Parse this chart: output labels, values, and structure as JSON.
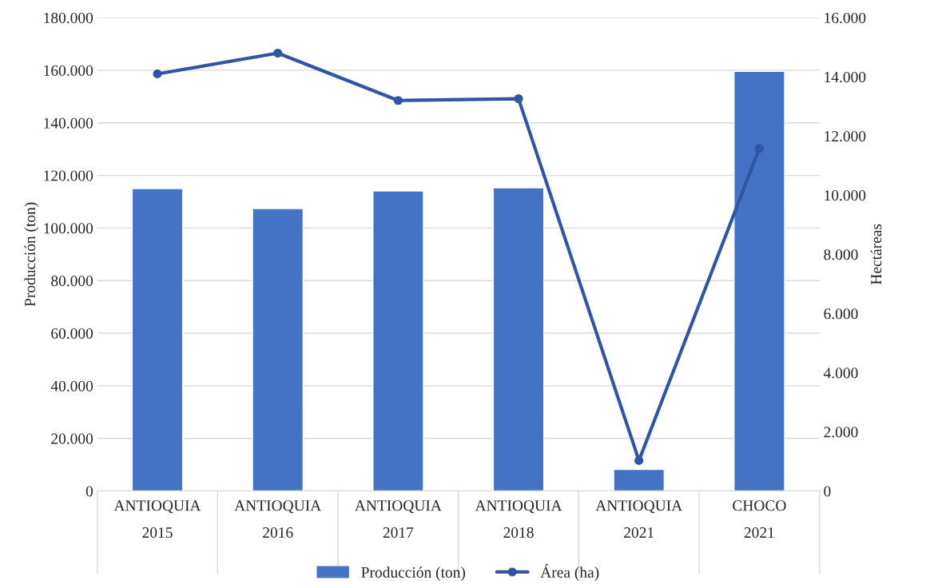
{
  "chart_data": {
    "type": "bar",
    "categories": [
      "ANTIOQUIA\n2015",
      "ANTIOQUIA\n2016",
      "ANTIOQUIA\n2017",
      "ANTIOQUIA\n2018",
      "ANTIOQUIA\n2021",
      "CHOCO\n2021"
    ],
    "series": [
      {
        "name": "Producción (ton)",
        "color": "#4472c4",
        "values": [
          115000,
          107400,
          114100,
          115300,
          8200,
          159600
        ]
      },
      {
        "name": "Área (ha)",
        "type": "line",
        "axis": "y2",
        "color": "#2f55a4",
        "marker": "circle",
        "values": [
          14100,
          14800,
          13200,
          13260,
          1030,
          11580
        ]
      }
    ],
    "ylabel": "Producción (ton)",
    "y2label": "Hectáreas",
    "ylim": [
      0,
      180000
    ],
    "yticks": [
      {
        "value": 0,
        "label": "0"
      },
      {
        "value": 20000,
        "label": "20.000"
      },
      {
        "value": 40000,
        "label": "40.000"
      },
      {
        "value": 60000,
        "label": "60.000"
      },
      {
        "value": 80000,
        "label": "80.000"
      },
      {
        "value": 100000,
        "label": "100.000"
      },
      {
        "value": 120000,
        "label": "120.000"
      },
      {
        "value": 140000,
        "label": "140.000"
      },
      {
        "value": 160000,
        "label": "160.000"
      },
      {
        "value": 180000,
        "label": "180.000"
      }
    ],
    "y2lim": [
      0,
      16000
    ],
    "y2ticks": [
      {
        "value": 0,
        "label": "0"
      },
      {
        "value": 2000,
        "label": "2.000"
      },
      {
        "value": 4000,
        "label": "4.000"
      },
      {
        "value": 6000,
        "label": "6.000"
      },
      {
        "value": 8000,
        "label": "8.000"
      },
      {
        "value": 10000,
        "label": "10.000"
      },
      {
        "value": 12000,
        "label": "12.000"
      },
      {
        "value": 14000,
        "label": "14.000"
      },
      {
        "value": 16000,
        "label": "16.000"
      }
    ],
    "grid": "y",
    "legend": "bottom"
  }
}
